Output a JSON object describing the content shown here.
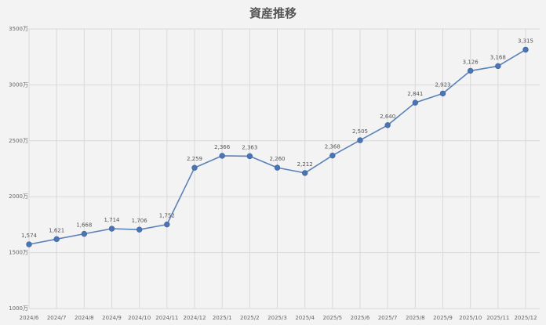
{
  "chart_data": {
    "type": "line",
    "title": "資産推移",
    "xlabel": "",
    "ylabel": "",
    "categories": [
      "2024/6",
      "2024/7",
      "2024/8",
      "2024/9",
      "2024/10",
      "2024/11",
      "2024/12",
      "2025/1",
      "2025/2",
      "2025/3",
      "2025/4",
      "2025/5",
      "2025/6",
      "2025/7",
      "2025/8",
      "2025/9",
      "2025/10",
      "2025/11",
      "2025/12"
    ],
    "series": [
      {
        "values": [
          1574,
          1621,
          1668,
          1714,
          1706,
          1752,
          2259,
          2366,
          2363,
          2260,
          2212,
          2368,
          2505,
          2640,
          2841,
          2923,
          3126,
          3168,
          3315
        ],
        "data_labels": [
          "1,574",
          "1,621",
          "1,668",
          "1,714",
          "1,706",
          "1,752",
          "2,259",
          "2,366",
          "2,363",
          "2,260",
          "2,212",
          "2,368",
          "2,505",
          "2,640",
          "2,841",
          "2,923",
          "3,126",
          "3,168",
          "3,315"
        ]
      }
    ],
    "ylim": [
      1000,
      3500
    ],
    "yticks": [
      1000,
      1500,
      2000,
      2500,
      3000,
      3500
    ],
    "ytick_labels": [
      "1000万",
      "1500万",
      "2000万",
      "2500万",
      "3000万",
      "3500万"
    ],
    "grid": true,
    "legend": "none",
    "colors": {
      "line": "#5b82b8",
      "marker": "#4a74b3",
      "grid": "#d9d9d9",
      "background": "#f3f3f3"
    }
  }
}
